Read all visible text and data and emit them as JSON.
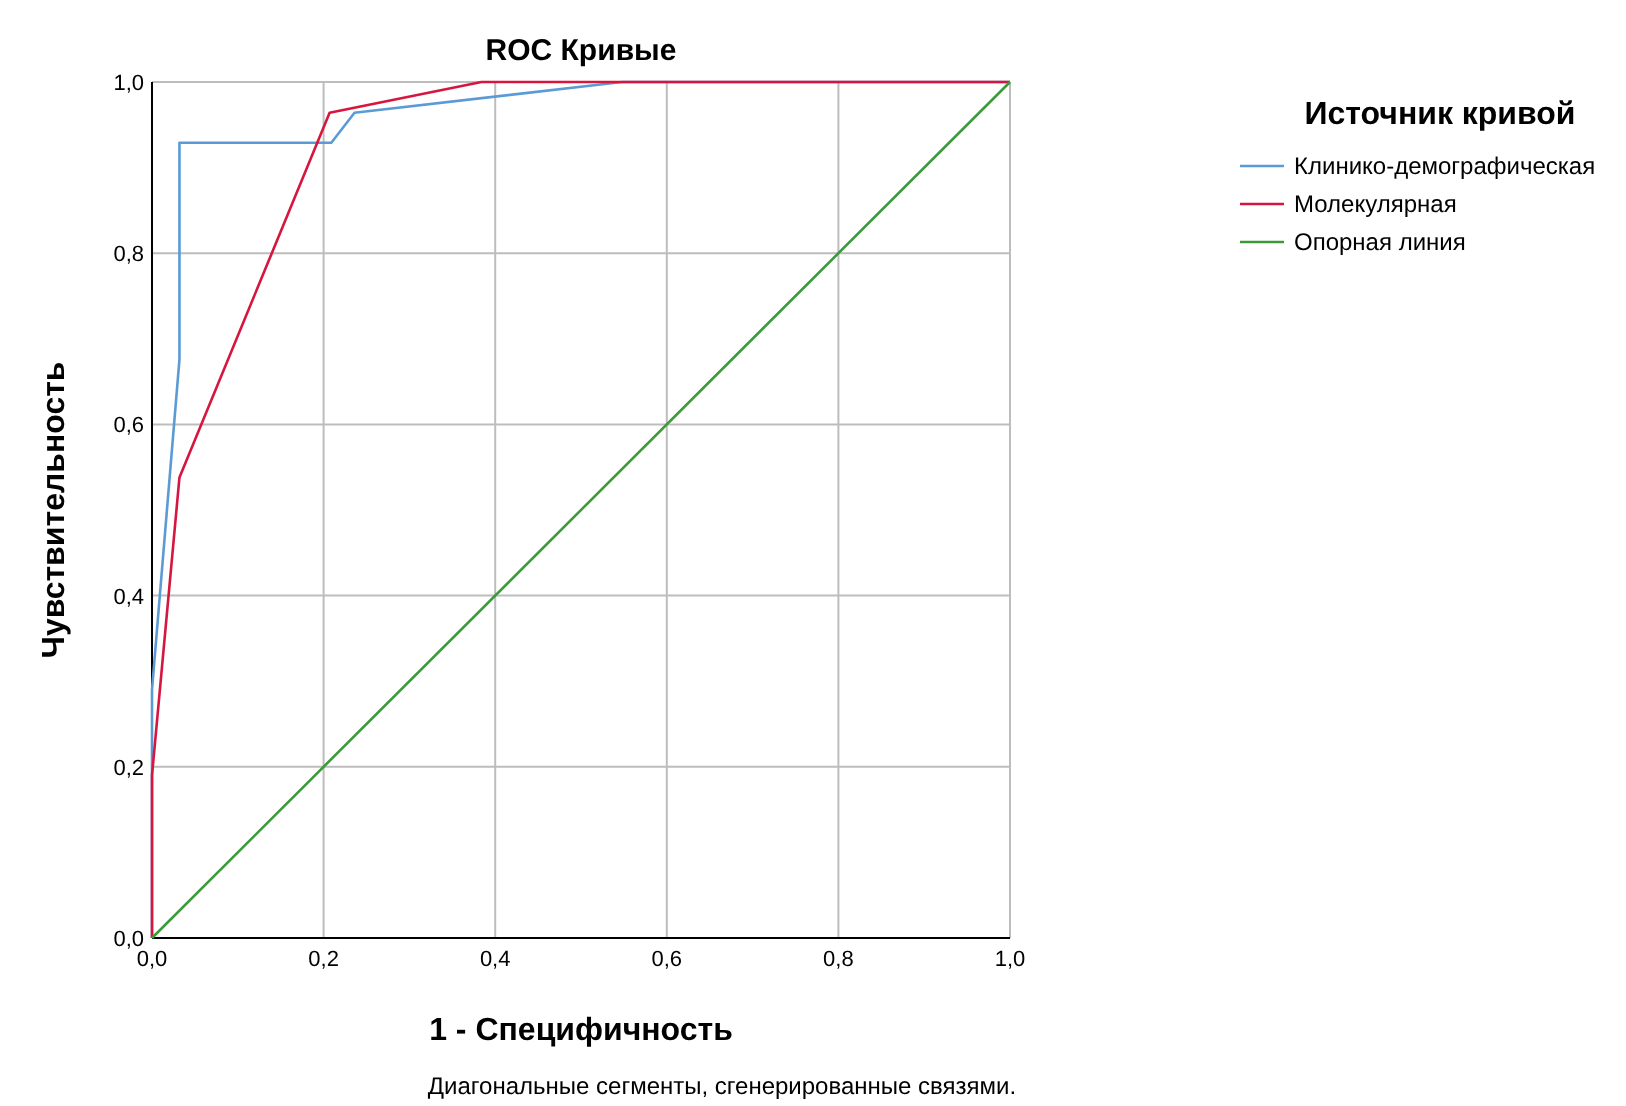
{
  "chart_data": {
    "type": "line",
    "title": "ROC Кривые",
    "xlabel": "1 - Специфичность",
    "ylabel": "Чувствительность",
    "legend_title": "Источник кривой",
    "annotations": [
      "Диагональные сегменты, сгенерированные связями."
    ],
    "series": [
      {
        "name": "Клинико-демографическая",
        "color": "#5b9bd5",
        "x": [
          0,
          0,
          0.032,
          0.032,
          0.209,
          0.236,
          0.548,
          1
        ],
        "values": [
          0,
          0.29,
          0.676,
          0.929,
          0.929,
          0.964,
          1,
          1
        ]
      },
      {
        "name": "Молекулярная",
        "color": "#d6163f",
        "x": [
          0,
          0,
          0.032,
          0.207,
          0.384,
          1
        ],
        "values": [
          0,
          0.19,
          0.538,
          0.964,
          1,
          1
        ]
      },
      {
        "name": "Опорная линия",
        "color": "#3c9a38",
        "x": [
          0,
          1
        ],
        "values": [
          0,
          1
        ]
      }
    ],
    "xlim": [
      0,
      1
    ],
    "ylim": [
      0,
      1
    ],
    "xticks": [
      {
        "value": 0,
        "label": "0,0"
      },
      {
        "value": 0.2,
        "label": "0,2"
      },
      {
        "value": 0.4,
        "label": "0,4"
      },
      {
        "value": 0.6,
        "label": "0,6"
      },
      {
        "value": 0.8,
        "label": "0,8"
      },
      {
        "value": 1,
        "label": "1,0"
      }
    ],
    "yticks": [
      {
        "value": 0,
        "label": "0,0"
      },
      {
        "value": 0.2,
        "label": "0,2"
      },
      {
        "value": 0.4,
        "label": "0,4"
      },
      {
        "value": 0.6,
        "label": "0,6"
      },
      {
        "value": 0.8,
        "label": "0,8"
      },
      {
        "value": 1,
        "label": "1,0"
      }
    ],
    "grid": true,
    "legend": "top right",
    "marker": "none",
    "line_style": "solid"
  }
}
